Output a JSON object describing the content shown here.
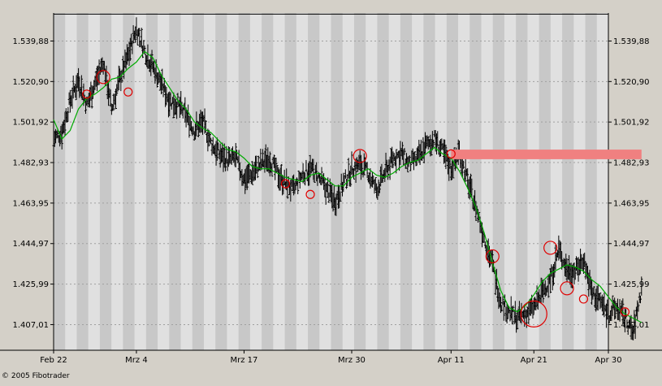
{
  "footer": {
    "copyright": "© 2005 Fibotrader"
  },
  "colors": {
    "background": "#d4d0c8",
    "plot_light": "#e0e0e0",
    "plot_stripe": "#c8c8c8",
    "bars": "#000000",
    "moving_average": "#00aa00",
    "markers": "#e00000",
    "highlight_band": "#f08080"
  },
  "chart_data": {
    "type": "ohlc",
    "title": "",
    "xlabel": "",
    "ylabel": "",
    "ylim": [
      1395.0,
      1553.0
    ],
    "y_ticks": [
      1407.01,
      1425.99,
      1444.97,
      1463.95,
      1482.93,
      1501.92,
      1520.9,
      1539.88
    ],
    "y_tick_labels": [
      "1.407,01",
      "1.425,99",
      "1.444,97",
      "1.463,95",
      "1.482,93",
      "1.501,92",
      "1.520,90",
      "1.539,88"
    ],
    "x_range_days": [
      0,
      67
    ],
    "x_ticks": [
      {
        "day": 0,
        "label": "Feb 22"
      },
      {
        "day": 10,
        "label": "Mrz 4"
      },
      {
        "day": 23,
        "label": "Mrz 17"
      },
      {
        "day": 36,
        "label": "Mrz 30"
      },
      {
        "day": 48,
        "label": "Apr 11"
      },
      {
        "day": 58,
        "label": "Apr 21"
      },
      {
        "day": 67,
        "label": "Apr 30"
      }
    ],
    "top_reference_line": 1552.5,
    "grid": true,
    "price_path": [
      [
        0,
        1494
      ],
      [
        1,
        1497
      ],
      [
        2,
        1512
      ],
      [
        3,
        1522
      ],
      [
        4,
        1510
      ],
      [
        5,
        1520
      ],
      [
        6,
        1530
      ],
      [
        7,
        1508
      ],
      [
        8,
        1522
      ],
      [
        9,
        1533
      ],
      [
        10,
        1546
      ],
      [
        11,
        1535
      ],
      [
        12,
        1528
      ],
      [
        13,
        1520
      ],
      [
        14,
        1512
      ],
      [
        15,
        1510
      ],
      [
        16,
        1505
      ],
      [
        17,
        1498
      ],
      [
        18,
        1502
      ],
      [
        19,
        1492
      ],
      [
        20,
        1487
      ],
      [
        21,
        1484
      ],
      [
        22,
        1485
      ],
      [
        23,
        1475
      ],
      [
        24,
        1478
      ],
      [
        25,
        1482
      ],
      [
        26,
        1485
      ],
      [
        27,
        1478
      ],
      [
        28,
        1473
      ],
      [
        29,
        1470
      ],
      [
        30,
        1477
      ],
      [
        31,
        1480
      ],
      [
        32,
        1476
      ],
      [
        33,
        1470
      ],
      [
        34,
        1465
      ],
      [
        35,
        1473
      ],
      [
        36,
        1480
      ],
      [
        37,
        1482
      ],
      [
        38,
        1478
      ],
      [
        39,
        1470
      ],
      [
        40,
        1478
      ],
      [
        41,
        1485
      ],
      [
        42,
        1487
      ],
      [
        43,
        1482
      ],
      [
        44,
        1485
      ],
      [
        45,
        1491
      ],
      [
        46,
        1494
      ],
      [
        47,
        1488
      ],
      [
        48,
        1480
      ],
      [
        49,
        1488
      ],
      [
        50,
        1474
      ],
      [
        51,
        1462
      ],
      [
        52,
        1448
      ],
      [
        53,
        1435
      ],
      [
        54,
        1418
      ],
      [
        55,
        1413
      ],
      [
        56,
        1410
      ],
      [
        57,
        1412
      ],
      [
        58,
        1415
      ],
      [
        59,
        1422
      ],
      [
        60,
        1428
      ],
      [
        61,
        1442
      ],
      [
        62,
        1433
      ],
      [
        63,
        1432
      ],
      [
        64,
        1438
      ],
      [
        65,
        1422
      ],
      [
        66,
        1418
      ],
      [
        67,
        1412
      ],
      [
        68,
        1415
      ],
      [
        69,
        1410
      ],
      [
        70,
        1403
      ],
      [
        71,
        1424
      ]
    ],
    "moving_average": [
      [
        0,
        1503
      ],
      [
        1,
        1494
      ],
      [
        2,
        1498
      ],
      [
        3,
        1508
      ],
      [
        4,
        1513
      ],
      [
        5,
        1515
      ],
      [
        6,
        1518
      ],
      [
        7,
        1522
      ],
      [
        8,
        1523
      ],
      [
        9,
        1527
      ],
      [
        10,
        1530
      ],
      [
        11,
        1535
      ],
      [
        12,
        1532
      ],
      [
        13,
        1524
      ],
      [
        14,
        1518
      ],
      [
        15,
        1512
      ],
      [
        16,
        1508
      ],
      [
        17,
        1502
      ],
      [
        18,
        1499
      ],
      [
        19,
        1497
      ],
      [
        20,
        1493
      ],
      [
        21,
        1489
      ],
      [
        22,
        1488
      ],
      [
        23,
        1485
      ],
      [
        24,
        1481
      ],
      [
        25,
        1480
      ],
      [
        26,
        1480
      ],
      [
        27,
        1478
      ],
      [
        28,
        1476
      ],
      [
        29,
        1475
      ],
      [
        30,
        1474
      ],
      [
        31,
        1477
      ],
      [
        32,
        1478
      ],
      [
        33,
        1475
      ],
      [
        34,
        1472
      ],
      [
        35,
        1472
      ],
      [
        36,
        1476
      ],
      [
        37,
        1478
      ],
      [
        38,
        1480
      ],
      [
        39,
        1477
      ],
      [
        40,
        1476
      ],
      [
        41,
        1478
      ],
      [
        42,
        1481
      ],
      [
        43,
        1483
      ],
      [
        44,
        1484
      ],
      [
        45,
        1487
      ],
      [
        46,
        1490
      ],
      [
        47,
        1487
      ],
      [
        48,
        1485
      ],
      [
        49,
        1479
      ],
      [
        50,
        1471
      ],
      [
        51,
        1462
      ],
      [
        52,
        1450
      ],
      [
        53,
        1436
      ],
      [
        54,
        1423
      ],
      [
        55,
        1415
      ],
      [
        56,
        1413
      ],
      [
        57,
        1416
      ],
      [
        58,
        1421
      ],
      [
        59,
        1427
      ],
      [
        60,
        1431
      ],
      [
        61,
        1433
      ],
      [
        62,
        1435
      ],
      [
        63,
        1434
      ],
      [
        64,
        1432
      ],
      [
        65,
        1428
      ],
      [
        66,
        1425
      ],
      [
        67,
        1420
      ],
      [
        68,
        1415
      ],
      [
        69,
        1412
      ],
      [
        70,
        1410
      ],
      [
        71,
        1408
      ]
    ],
    "markers": [
      {
        "day": 6,
        "price": 1523,
        "size": "medium"
      },
      {
        "day": 4,
        "price": 1515,
        "size": "small"
      },
      {
        "day": 9,
        "price": 1516,
        "size": "small"
      },
      {
        "day": 28,
        "price": 1473,
        "size": "small"
      },
      {
        "day": 31,
        "price": 1468,
        "size": "small"
      },
      {
        "day": 37,
        "price": 1486,
        "size": "medium"
      },
      {
        "day": 48,
        "price": 1487,
        "size": "small"
      },
      {
        "day": 53,
        "price": 1439,
        "size": "medium"
      },
      {
        "day": 58,
        "price": 1412,
        "size": "large"
      },
      {
        "day": 60,
        "price": 1443,
        "size": "medium"
      },
      {
        "day": 62,
        "price": 1424,
        "size": "medium"
      },
      {
        "day": 64,
        "price": 1419,
        "size": "small"
      },
      {
        "day": 69,
        "price": 1413,
        "size": "small"
      }
    ],
    "highlight_band": {
      "day_start": 48,
      "day_end": 71,
      "price_low": 1484.5,
      "price_high": 1489.0
    }
  }
}
